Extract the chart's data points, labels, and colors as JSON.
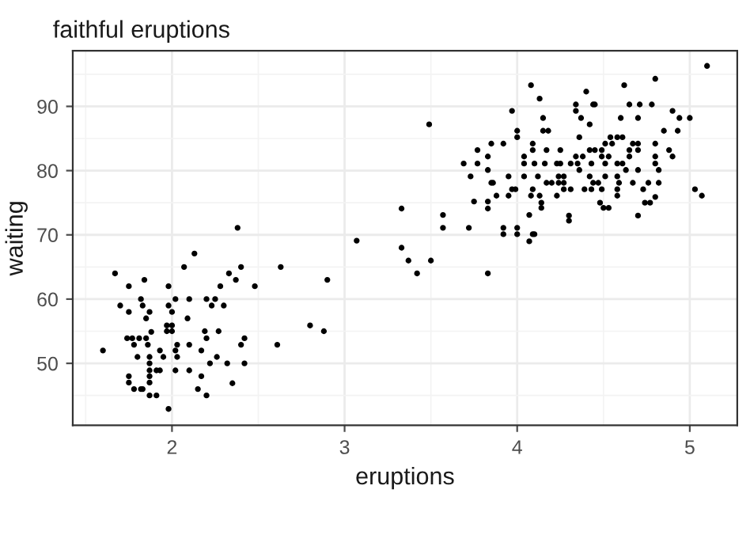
{
  "chart_data": {
    "type": "scatter",
    "title": "faithful eruptions",
    "xlabel": "eruptions",
    "ylabel": "waiting",
    "xlim": [
      1.425,
      5.275
    ],
    "ylim": [
      40.35,
      98.65
    ],
    "xticks": [
      2,
      3,
      4,
      5
    ],
    "yticks": [
      50,
      60,
      70,
      80,
      90
    ],
    "grid": true,
    "marker": "circle",
    "series": [
      {
        "color": "#000000",
        "x": [
          2.38,
          2.13,
          1.67,
          2.07,
          2.4,
          2.63,
          1.84,
          1.75,
          1.98,
          2.33,
          2.37,
          2.28,
          2.48,
          2.9,
          1.7,
          1.82,
          1.83,
          1.98,
          2.02,
          2.1,
          2.2,
          2.25,
          2.23,
          2.3,
          1.75,
          1.87,
          1.85,
          2.0,
          2.09,
          1.97,
          2.0,
          1.97,
          2.0,
          2.19,
          2.27,
          2.2,
          1.74,
          1.77,
          1.81,
          1.85,
          1.88,
          1.78,
          1.86,
          1.93,
          2.03,
          2.1,
          2.02,
          2.17,
          2.42,
          2.4,
          2.61,
          2.8,
          2.88,
          1.6,
          1.8,
          1.87,
          1.95,
          2.03,
          2.26,
          2.22,
          2.32,
          2.42,
          1.87,
          1.87,
          1.91,
          1.93,
          2.02,
          2.1,
          1.75,
          1.87,
          2.17,
          1.75,
          1.87,
          2.35,
          1.78,
          1.82,
          1.83,
          2.15,
          1.87,
          1.91,
          2.2,
          1.98,
          3.07,
          3.33,
          3.33,
          3.37,
          3.42,
          3.5,
          3.57,
          3.57,
          3.72,
          3.75,
          3.83,
          3.83,
          3.83,
          3.88,
          3.95,
          3.92,
          3.92,
          4.0,
          4.0,
          4.07,
          4.07,
          4.09,
          4.1,
          4.08,
          3.49,
          5.1,
          4.8,
          4.62,
          4.4,
          4.08,
          4.13,
          3.97,
          4.34,
          4.34,
          4.44,
          4.45,
          4.42,
          4.15,
          4.37,
          4.6,
          4.65,
          4.71,
          4.78,
          4.7,
          4.9,
          4.94,
          5.0,
          4.85,
          4.93,
          4.15,
          4.18,
          4.0,
          4.0,
          4.36,
          4.54,
          4.58,
          4.61,
          3.77,
          3.85,
          3.92,
          4.09,
          4.09,
          4.17,
          4.25,
          4.42,
          4.45,
          4.51,
          4.55,
          4.67,
          4.7,
          4.8,
          4.88,
          4.9,
          4.49,
          4.49,
          4.53,
          4.34,
          4.38,
          4.25,
          4.31,
          4.35,
          4.51,
          4.58,
          4.65,
          4.65,
          4.7,
          4.8,
          4.8,
          3.69,
          3.77,
          3.83,
          4.04,
          4.04,
          4.1,
          4.16,
          4.23,
          3.73,
          3.83,
          3.85,
          3.86,
          3.95,
          4.04,
          4.12,
          4.24,
          4.27,
          4.17,
          4.2,
          4.24,
          4.27,
          4.42,
          4.44,
          4.51,
          4.58,
          4.59,
          4.47,
          4.36,
          4.43,
          4.61,
          4.63,
          4.7,
          4.76,
          4.82,
          4.82,
          4.58,
          4.58,
          4.67,
          4.73,
          4.39,
          3.99,
          3.97,
          4.09,
          4.13,
          4.14,
          4.14,
          4.23,
          4.27,
          4.31,
          4.43,
          4.49,
          4.48,
          4.5,
          4.53,
          4.3,
          4.3,
          4.74,
          4.77,
          4.8,
          4.7,
          5.03,
          5.07
        ],
        "values": [
          71.1,
          67.1,
          64.0,
          65.0,
          65.0,
          65.0,
          63.0,
          62.0,
          62.0,
          64.0,
          63.0,
          62.0,
          62.0,
          63.0,
          59.0,
          60.0,
          59.0,
          59.0,
          60.0,
          60.0,
          60.0,
          60.0,
          59.0,
          59.0,
          58.0,
          58.0,
          57.0,
          58.0,
          57.0,
          55.9,
          55.9,
          55.0,
          55.0,
          55.0,
          55.0,
          53.9,
          53.9,
          53.9,
          53.9,
          53.9,
          54.9,
          52.9,
          52.9,
          52.0,
          52.9,
          52.9,
          52.0,
          52.0,
          53.9,
          52.9,
          52.9,
          55.9,
          55.0,
          52.0,
          51.0,
          51.0,
          51.0,
          51.0,
          51.0,
          50.0,
          50.0,
          50.0,
          50.0,
          48.9,
          48.9,
          48.9,
          48.9,
          48.9,
          48.0,
          48.0,
          48.0,
          47.0,
          47.0,
          46.9,
          46.0,
          46.0,
          46.0,
          46.0,
          45.0,
          45.0,
          45.0,
          42.9,
          69.1,
          74.1,
          68.0,
          66.0,
          64.0,
          66.0,
          73.1,
          71.1,
          71.1,
          75.2,
          75.2,
          74.1,
          64.0,
          76.1,
          76.1,
          71.1,
          70.1,
          71.1,
          70.1,
          73.1,
          69.0,
          70.1,
          70.1,
          76.1,
          87.2,
          96.3,
          94.3,
          93.3,
          92.3,
          93.3,
          91.2,
          89.3,
          90.3,
          89.3,
          90.3,
          90.3,
          87.2,
          88.2,
          88.2,
          88.2,
          90.3,
          90.3,
          90.3,
          88.2,
          89.3,
          88.2,
          88.2,
          86.2,
          86.2,
          86.2,
          86.2,
          86.2,
          85.2,
          85.2,
          85.2,
          85.2,
          85.2,
          83.2,
          84.2,
          84.2,
          84.2,
          83.2,
          83.2,
          83.2,
          83.2,
          83.2,
          84.2,
          84.2,
          84.2,
          84.2,
          84.2,
          83.2,
          82.2,
          83.2,
          82.2,
          82.2,
          82.2,
          82.2,
          81.1,
          81.1,
          81.1,
          81.1,
          81.1,
          83.2,
          82.2,
          83.2,
          82.2,
          81.1,
          81.1,
          81.1,
          82.2,
          82.2,
          81.1,
          81.1,
          81.1,
          81.1,
          79.1,
          80.1,
          78.1,
          78.1,
          79.1,
          79.1,
          79.1,
          79.1,
          79.1,
          78.1,
          78.1,
          78.1,
          78.1,
          79.1,
          78.1,
          79.1,
          79.1,
          78.1,
          78.1,
          80.1,
          81.1,
          81.1,
          80.1,
          80.1,
          78.1,
          78.1,
          80.1,
          77.1,
          76.1,
          78.1,
          77.1,
          77.1,
          77.1,
          77.1,
          77.1,
          76.1,
          75.0,
          74.2,
          76.1,
          77.1,
          77.1,
          77.1,
          77.1,
          75.0,
          74.2,
          74.2,
          73.0,
          72.2,
          75.0,
          75.0,
          75.9,
          73.0,
          77.1,
          76.1
        ]
      }
    ]
  }
}
